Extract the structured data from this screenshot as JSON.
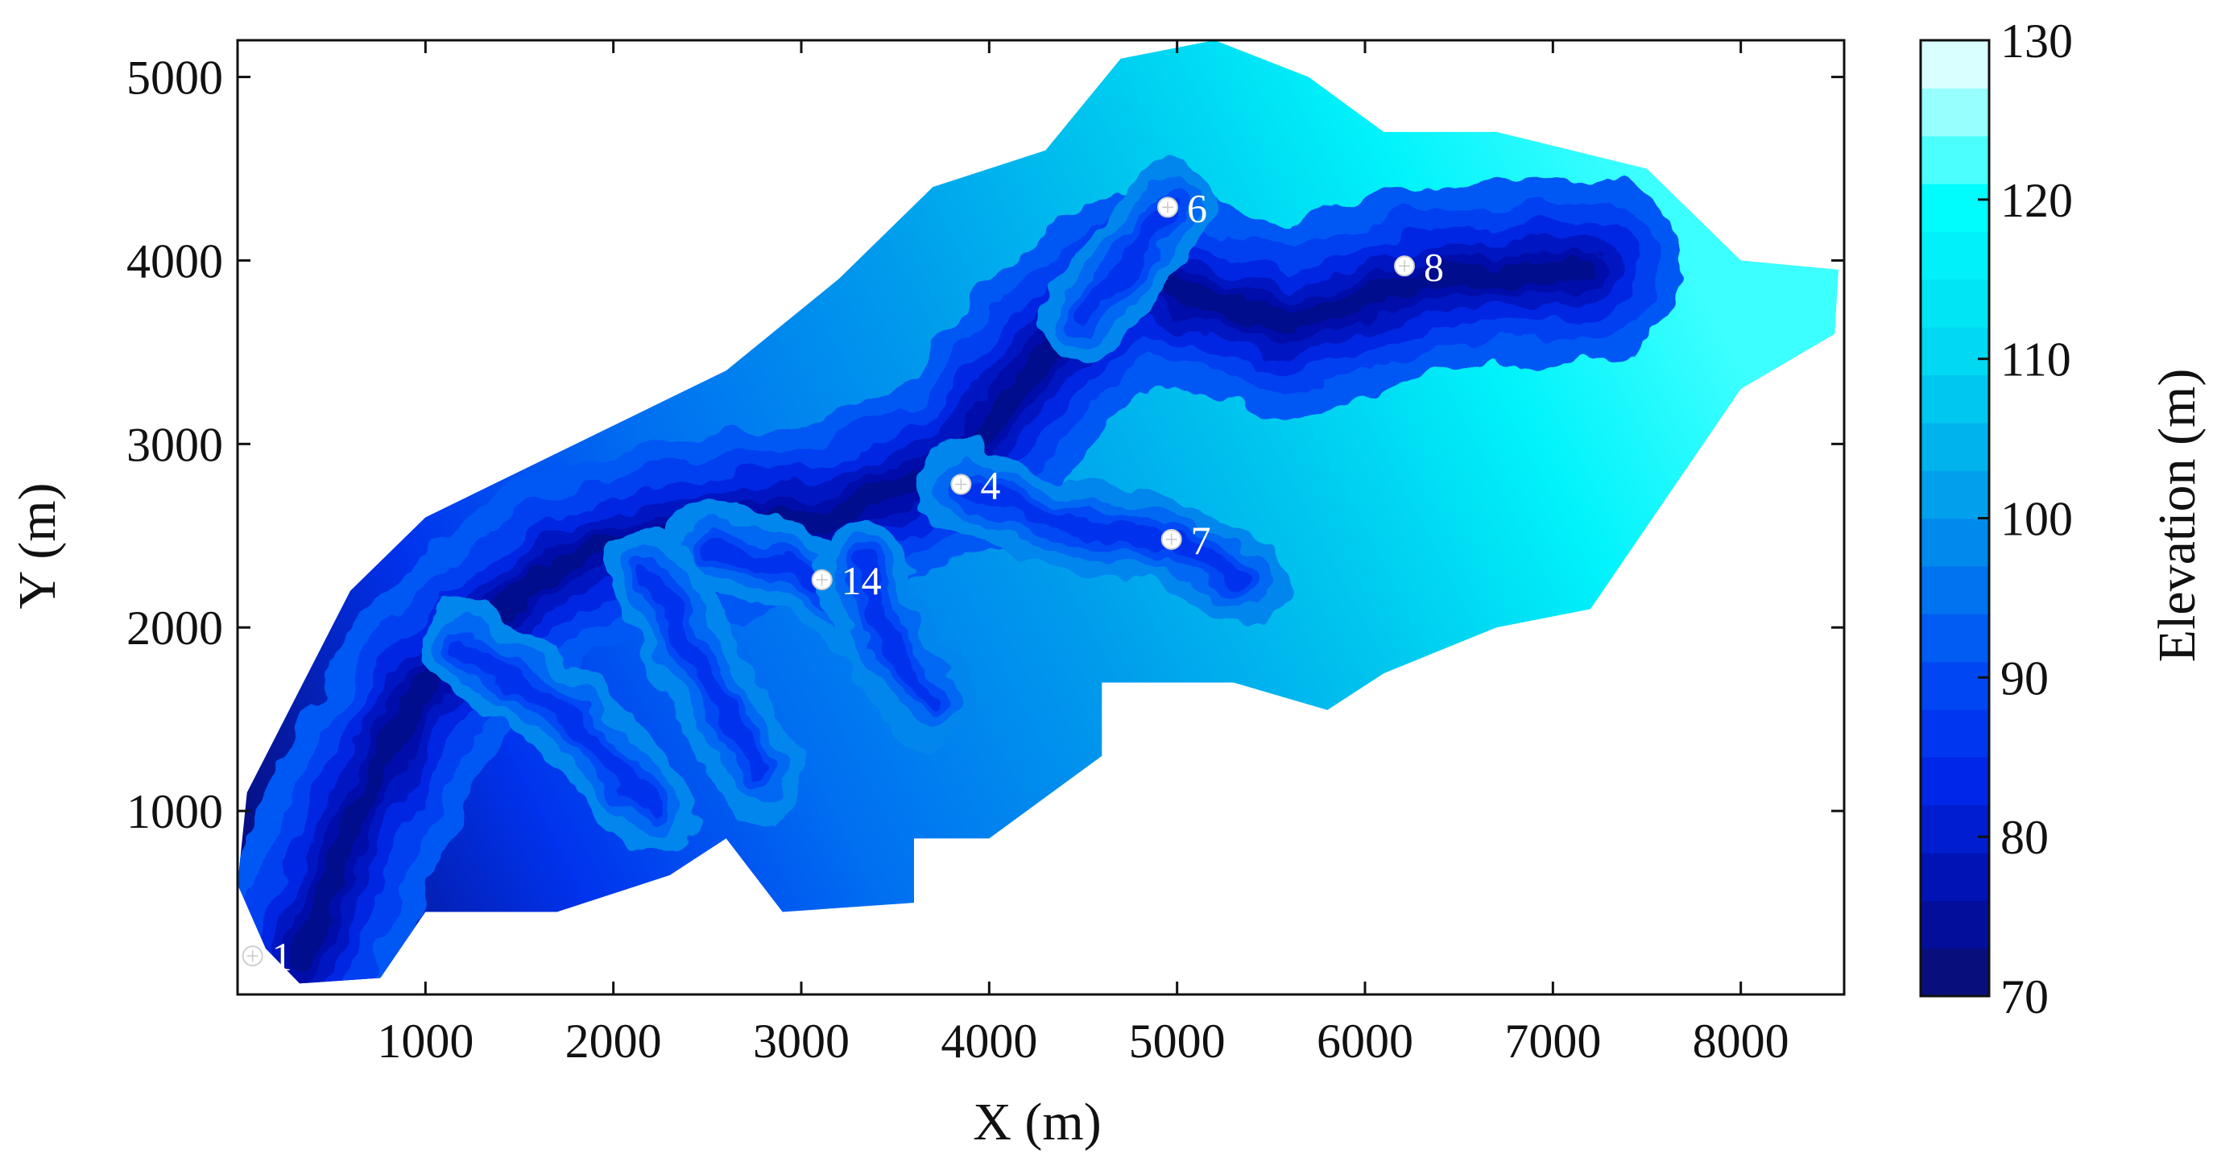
{
  "chart_data": {
    "type": "heatmap",
    "subtype": "filled-contour-map",
    "xlabel": "X (m)",
    "ylabel": "Y (m)",
    "xlim": [
      0,
      8550
    ],
    "ylim": [
      0,
      5200
    ],
    "x_ticks": [
      1000,
      2000,
      3000,
      4000,
      5000,
      6000,
      7000,
      8000
    ],
    "y_ticks": [
      1000,
      2000,
      3000,
      4000,
      5000
    ],
    "colorbar": {
      "label": "Elevation (m)",
      "range": [
        70,
        130
      ],
      "ticks": [
        70,
        80,
        90,
        100,
        110,
        120,
        130
      ],
      "levels": [
        70,
        73,
        76,
        79,
        82,
        85,
        88,
        91,
        94,
        97,
        100,
        103,
        106,
        109,
        112,
        115,
        118,
        121,
        124,
        127,
        130
      ]
    },
    "stations": [
      {
        "label": "1",
        "x": 80,
        "y": 210
      },
      {
        "label": "14",
        "x": 3110,
        "y": 2260
      },
      {
        "label": "4",
        "x": 3850,
        "y": 2780
      },
      {
        "label": "7",
        "x": 4970,
        "y": 2480
      },
      {
        "label": "6",
        "x": 4950,
        "y": 4290
      },
      {
        "label": "8",
        "x": 6210,
        "y": 3970
      }
    ],
    "watershed_outline": [
      [
        150,
        250
      ],
      [
        330,
        60
      ],
      [
        760,
        90
      ],
      [
        1000,
        450
      ],
      [
        1700,
        450
      ],
      [
        2300,
        650
      ],
      [
        2600,
        850
      ],
      [
        2900,
        450
      ],
      [
        3600,
        500
      ],
      [
        3600,
        850
      ],
      [
        4000,
        850
      ],
      [
        4600,
        1300
      ],
      [
        4600,
        1700
      ],
      [
        5300,
        1700
      ],
      [
        5800,
        1550
      ],
      [
        6100,
        1750
      ],
      [
        6700,
        2000
      ],
      [
        7200,
        2100
      ],
      [
        7600,
        2700
      ],
      [
        8000,
        3300
      ],
      [
        8500,
        3600
      ],
      [
        8520,
        3950
      ],
      [
        8000,
        4000
      ],
      [
        7500,
        4500
      ],
      [
        6700,
        4700
      ],
      [
        6100,
        4700
      ],
      [
        5700,
        5000
      ],
      [
        5200,
        5200
      ],
      [
        4700,
        5100
      ],
      [
        4300,
        4600
      ],
      [
        3700,
        4400
      ],
      [
        3200,
        3900
      ],
      [
        2600,
        3400
      ],
      [
        2200,
        3200
      ],
      [
        1600,
        2900
      ],
      [
        1000,
        2600
      ],
      [
        600,
        2200
      ],
      [
        250,
        1500
      ],
      [
        50,
        1100
      ],
      [
        0,
        600
      ]
    ],
    "channels": [
      {
        "name": "main",
        "points": [
          [
            330,
            150
          ],
          [
            600,
            900
          ],
          [
            1000,
            1700
          ],
          [
            1700,
            2350
          ],
          [
            2500,
            2550
          ],
          [
            3100,
            2600
          ],
          [
            3850,
            2900
          ],
          [
            4300,
            3500
          ],
          [
            4800,
            3900
          ],
          [
            5600,
            3650
          ],
          [
            6300,
            3900
          ],
          [
            7200,
            3950
          ]
        ]
      },
      {
        "name": "trib7",
        "points": [
          [
            3850,
            2780
          ],
          [
            4400,
            2550
          ],
          [
            4970,
            2480
          ],
          [
            5350,
            2250
          ]
        ]
      },
      {
        "name": "trib6",
        "points": [
          [
            4500,
            3700
          ],
          [
            4800,
            4050
          ],
          [
            4950,
            4290
          ]
        ]
      },
      {
        "name": "trib14",
        "points": [
          [
            2500,
            2450
          ],
          [
            3110,
            2260
          ],
          [
            3500,
            1900
          ]
        ]
      },
      {
        "name": "tribA",
        "points": [
          [
            1200,
            1900
          ],
          [
            1800,
            1500
          ],
          [
            2200,
            1000
          ]
        ]
      },
      {
        "name": "tribB",
        "points": [
          [
            2200,
            2300
          ],
          [
            2500,
            1700
          ],
          [
            2800,
            1200
          ]
        ]
      },
      {
        "name": "tribC",
        "points": [
          [
            3300,
            2350
          ],
          [
            3500,
            1850
          ],
          [
            3700,
            1600
          ]
        ]
      }
    ]
  }
}
